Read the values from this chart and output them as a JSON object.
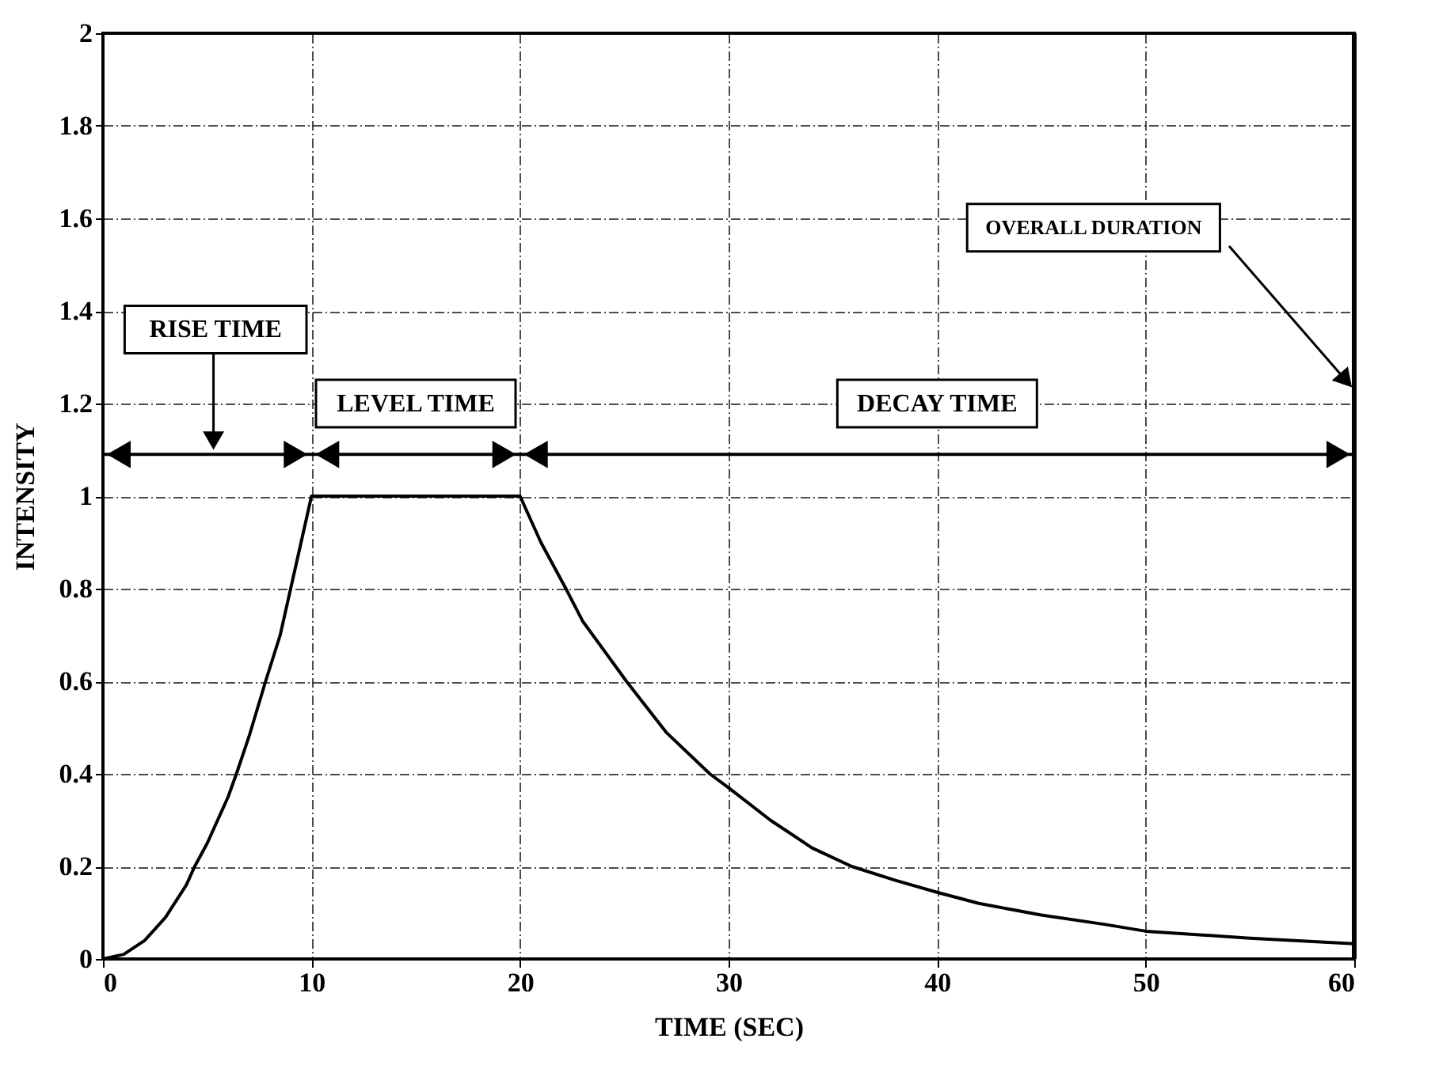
{
  "chart_data": {
    "type": "line",
    "xlabel": "TIME (SEC)",
    "ylabel": "INTENSITY",
    "x": [
      0,
      1,
      2,
      3,
      4,
      4.4,
      5,
      6,
      6.4,
      7,
      7.8,
      8.5,
      9,
      10,
      12,
      14,
      16,
      18,
      20,
      21,
      22.2,
      23,
      25.1,
      27,
      29.1,
      30,
      32,
      34,
      35.9,
      38,
      40,
      42,
      45,
      48,
      50,
      55,
      60
    ],
    "series": [
      {
        "color": "#000000",
        "values": [
          0,
          0.01,
          0.04,
          0.09,
          0.16,
          0.2,
          0.25,
          0.35,
          0.4,
          0.48,
          0.6,
          0.7,
          0.8,
          1,
          1,
          1,
          1,
          1,
          1,
          0.9,
          0.8,
          0.73,
          0.6,
          0.49,
          0.4,
          0.37,
          0.3,
          0.24,
          0.2,
          0.17,
          0.144,
          0.12,
          0.095,
          0.075,
          0.06,
          0.045,
          0.033
        ]
      }
    ],
    "xlim": [
      0,
      60
    ],
    "xticks": [
      0,
      10,
      20,
      30,
      40,
      50,
      60
    ],
    "ylim": [
      0,
      2
    ],
    "yticks": [
      0,
      0.2,
      0.4,
      0.6,
      0.8,
      1,
      1.2,
      1.4,
      1.6,
      1.8,
      2
    ],
    "grid": true,
    "marker": "none",
    "line_style": "solid",
    "ref_lines": [
      {
        "axis": "y",
        "value": 1.09
      },
      {
        "axis": "x",
        "value": 60
      }
    ],
    "annotations": [
      "RISE TIME",
      "LEVEL TIME",
      "DECAY TIME",
      "OVERALL DURATION"
    ]
  }
}
